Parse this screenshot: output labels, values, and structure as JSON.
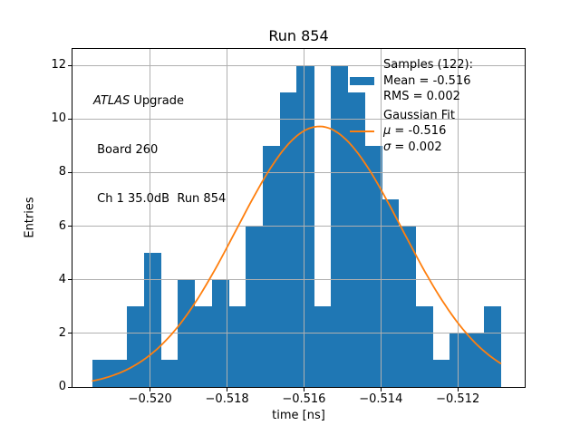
{
  "title": "Run 854",
  "axis": {
    "xlabel": "time [ns]",
    "ylabel": "Entries",
    "x_tick_labels": [
      "−0.520",
      "−0.518",
      "−0.516",
      "−0.514",
      "−0.512"
    ],
    "y_tick_labels": [
      "0",
      "2",
      "4",
      "6",
      "8",
      "10",
      "12"
    ]
  },
  "annotation": {
    "brand_italic": "ATLAS",
    "brand_rest": " Upgrade",
    "board": " Board 260",
    "channel": " Ch 1 35.0dB  Run 854"
  },
  "legend": {
    "samples_header": "Samples (122):",
    "mean": "Mean = -0.516",
    "rms": "RMS = 0.002",
    "fit_header": "Gaussian Fit",
    "mu_symbol": "μ",
    "mu_value": " = -0.516",
    "sigma_symbol": "σ",
    "sigma_value": " = 0.002"
  },
  "colors": {
    "bar": "#1f77b4",
    "fit_line": "#ff7f0e",
    "grid": "#b0b0b0",
    "spine": "#000000",
    "background": "#ffffff"
  },
  "chart_data": {
    "type": "bar",
    "subtype": "histogram",
    "title": "Run 854",
    "xlabel": "time [ns]",
    "ylabel": "Entries",
    "xlim": [
      -0.52202,
      -0.51026
    ],
    "ylim": [
      0,
      12.61
    ],
    "xticks": [
      -0.52,
      -0.518,
      -0.516,
      -0.514,
      -0.512
    ],
    "yticks": [
      0,
      2,
      4,
      6,
      8,
      10,
      12
    ],
    "grid": true,
    "legend_position": "upper right",
    "histogram": {
      "bin_start": -0.521494,
      "bin_width": 0.000442,
      "counts": [
        1,
        1,
        3,
        5,
        1,
        4,
        3,
        4,
        3,
        6,
        9,
        11,
        12,
        3,
        12,
        11,
        9,
        7,
        6,
        3,
        1,
        2,
        2,
        3
      ],
      "total_samples": 122,
      "mean": -0.516,
      "rms": 0.002,
      "color": "#1f77b4"
    },
    "gaussian_fit": {
      "amplitude": 9.72,
      "mu": -0.5156,
      "sigma": 0.00215,
      "reported_mu": -0.516,
      "reported_sigma": 0.002,
      "x_start": -0.521494,
      "x_end": -0.510886,
      "color": "#ff7f0e"
    }
  }
}
